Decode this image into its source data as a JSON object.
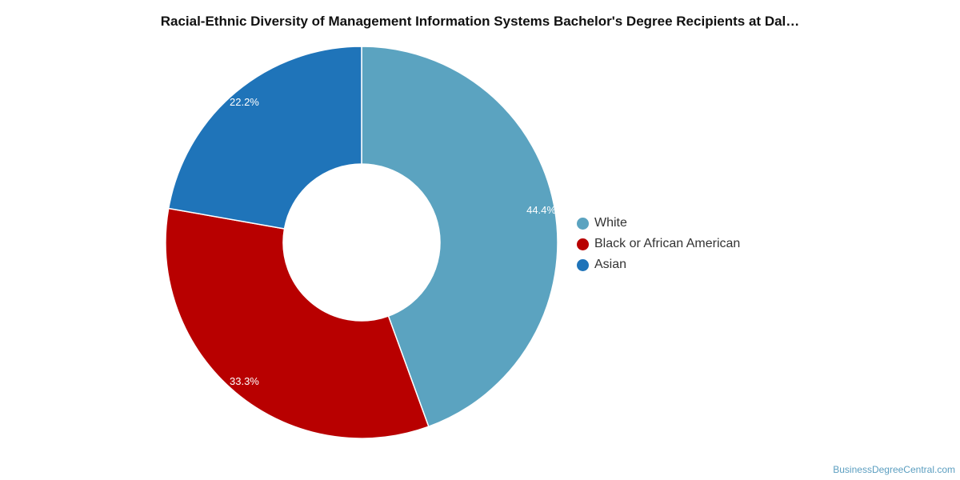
{
  "chart_data": {
    "type": "pie",
    "title": "Racial-Ethnic Diversity of Management Information Systems Bachelor's Degree Recipients at Dal…",
    "variant": "donut",
    "legend_position": "right",
    "slices": [
      {
        "label": "White",
        "value": 44.4,
        "value_label": "44.4%",
        "color": "#5ba3c0"
      },
      {
        "label": "Black or African American",
        "value": 33.3,
        "value_label": "33.3%",
        "color": "#b80000"
      },
      {
        "label": "Asian",
        "value": 22.2,
        "value_label": "22.2%",
        "color": "#1f74b9"
      }
    ]
  },
  "footer": {
    "credit": "BusinessDegreeCentral.com"
  }
}
